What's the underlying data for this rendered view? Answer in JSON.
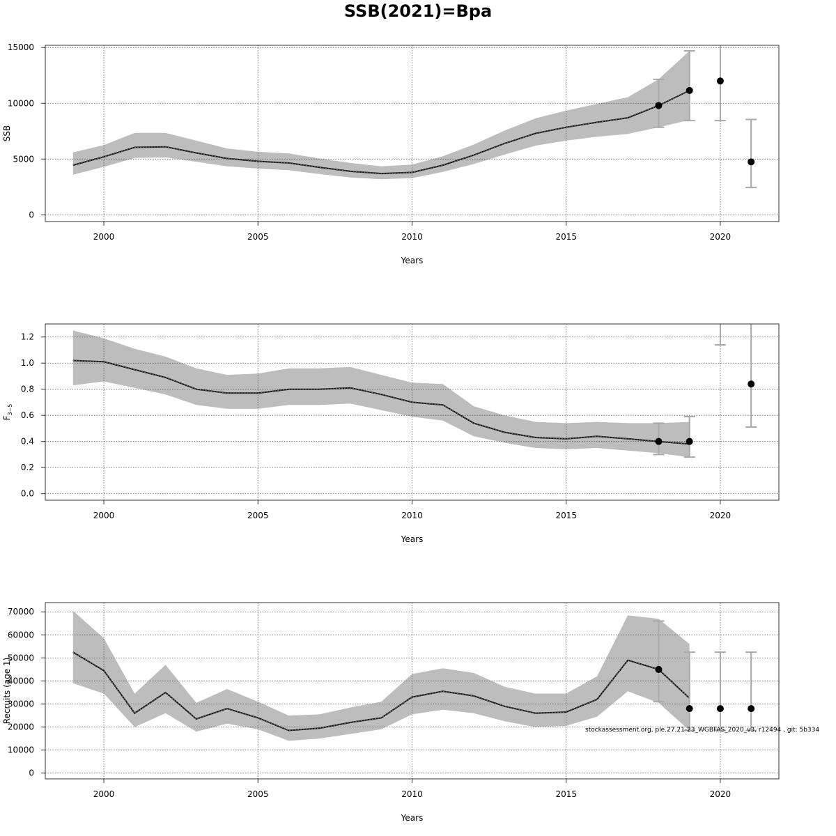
{
  "chart_data": {
    "title": "SSB(2021)=Bpa",
    "footnote": "stockassessment.org, ple.27.21-23_WGBFAS_2020_v3, r12494 , git: 5b334",
    "panels": [
      {
        "type": "line",
        "ylabel": "SSB",
        "xlabel": "Years",
        "xlim": [
          1998.1,
          2021.9
        ],
        "ylim": [
          -600,
          15200
        ],
        "xticks": [
          "2000",
          "2005",
          "2010",
          "2015",
          "2020"
        ],
        "yticks": [
          "0",
          "5000",
          "10000",
          "15000"
        ],
        "grid": true,
        "series": [
          {
            "x": [
              1999,
              2000,
              2001,
              2002,
              2003,
              2004,
              2005,
              2006,
              2007,
              2008,
              2009,
              2010,
              2011,
              2012,
              2013,
              2014,
              2015,
              2016,
              2017,
              2018,
              2019
            ],
            "estimate": [
              4450,
              5200,
              6050,
              6100,
              5550,
              5050,
              4800,
              4650,
              4250,
              3900,
              3700,
              3800,
              4450,
              5350,
              6400,
              7300,
              7850,
              8300,
              8700,
              9800,
              11150
            ],
            "lower": [
              3600,
              4300,
              5100,
              5150,
              4750,
              4350,
              4150,
              4000,
              3650,
              3350,
              3200,
              3300,
              3850,
              4550,
              5400,
              6200,
              6650,
              7000,
              7250,
              7850,
              8500
            ],
            "upper": [
              5600,
              6250,
              7350,
              7350,
              6650,
              5950,
              5650,
              5500,
              5050,
              4650,
              4350,
              4500,
              5250,
              6300,
              7550,
              8650,
              9350,
              9950,
              10550,
              12150,
              14700
            ]
          }
        ],
        "points": [
          {
            "x": 2018,
            "y": 9800,
            "lo": 7850,
            "hi": 12150
          },
          {
            "x": 2019,
            "y": 11150,
            "lo": 8450,
            "hi": 14700
          },
          {
            "x": 2020,
            "y": 12000,
            "lo": 8450,
            "hi": 15500
          },
          {
            "x": 2021,
            "y": 4750,
            "lo": 2450,
            "hi": 8550
          }
        ]
      },
      {
        "type": "line",
        "ylabel": "F3-5",
        "ylabel_main": "F",
        "ylabel_sub": "3−5",
        "xlabel": "Years",
        "xlim": [
          1998.1,
          2021.9
        ],
        "ylim": [
          -0.05,
          1.3
        ],
        "xticks": [
          "2000",
          "2005",
          "2010",
          "2015",
          "2020"
        ],
        "yticks": [
          "0.0",
          "0.2",
          "0.4",
          "0.6",
          "0.8",
          "1.0",
          "1.2"
        ],
        "grid": true,
        "series": [
          {
            "x": [
              1999,
              2000,
              2001,
              2002,
              2003,
              2004,
              2005,
              2006,
              2007,
              2008,
              2009,
              2010,
              2011,
              2012,
              2013,
              2014,
              2015,
              2016,
              2017,
              2018,
              2019
            ],
            "estimate": [
              1.02,
              1.01,
              0.95,
              0.89,
              0.8,
              0.77,
              0.77,
              0.8,
              0.8,
              0.81,
              0.76,
              0.7,
              0.68,
              0.54,
              0.47,
              0.43,
              0.42,
              0.44,
              0.42,
              0.4,
              0.38
            ],
            "lower": [
              0.83,
              0.86,
              0.81,
              0.76,
              0.68,
              0.65,
              0.65,
              0.68,
              0.68,
              0.69,
              0.64,
              0.59,
              0.56,
              0.44,
              0.39,
              0.35,
              0.34,
              0.35,
              0.33,
              0.31,
              0.28
            ],
            "upper": [
              1.25,
              1.19,
              1.11,
              1.05,
              0.96,
              0.91,
              0.92,
              0.96,
              0.96,
              0.97,
              0.91,
              0.85,
              0.84,
              0.67,
              0.6,
              0.55,
              0.54,
              0.55,
              0.54,
              0.54,
              0.55
            ]
          }
        ],
        "points": [
          {
            "x": 2018,
            "y": 0.4,
            "lo": 0.3,
            "hi": 0.54
          },
          {
            "x": 2019,
            "y": 0.4,
            "lo": 0.28,
            "hi": 0.59
          },
          {
            "x": 2020,
            "y": 1.35,
            "lo": 1.14,
            "hi": 1.4
          },
          {
            "x": 2021,
            "y": 0.84,
            "lo": 0.51,
            "hi": 1.4
          }
        ]
      },
      {
        "type": "line",
        "ylabel": "Recruits (age 1)",
        "xlabel": "Years",
        "xlim": [
          1998.1,
          2021.9
        ],
        "ylim": [
          -2500,
          74000
        ],
        "xticks": [
          "2000",
          "2005",
          "2010",
          "2015",
          "2020"
        ],
        "yticks": [
          "0",
          "10000",
          "20000",
          "30000",
          "40000",
          "50000",
          "60000",
          "70000"
        ],
        "grid": true,
        "series": [
          {
            "x": [
              1999,
              2000,
              2001,
              2002,
              2003,
              2004,
              2005,
              2006,
              2007,
              2008,
              2009,
              2010,
              2011,
              2012,
              2013,
              2014,
              2015,
              2016,
              2017,
              2018,
              2019
            ],
            "estimate": [
              52500,
              44500,
              26000,
              35000,
              23500,
              28000,
              24000,
              18500,
              19500,
              22000,
              24000,
              33000,
              35500,
              33500,
              29000,
              26000,
              26500,
              32000,
              49000,
              45000,
              32500
            ],
            "lower": [
              39000,
              34500,
              20000,
              26000,
              18000,
              21500,
              19000,
              14000,
              15000,
              17000,
              19000,
              25500,
              27500,
              26000,
              22500,
              20000,
              20500,
              24500,
              35500,
              30500,
              18500
            ],
            "upper": [
              70500,
              58500,
              34500,
              47000,
              30500,
              36500,
              31000,
              25000,
              25500,
              28500,
              31000,
              43000,
              45500,
              43500,
              37500,
              34500,
              34500,
              42000,
              68500,
              67000,
              56000
            ]
          }
        ],
        "points": [
          {
            "x": 2018,
            "y": 45000,
            "lo": 31000,
            "hi": 66000
          },
          {
            "x": 2019,
            "y": 28000,
            "lo": 18500,
            "hi": 52500
          },
          {
            "x": 2020,
            "y": 28000,
            "lo": 18500,
            "hi": 52500
          },
          {
            "x": 2021,
            "y": 28000,
            "lo": 18500,
            "hi": 52500
          }
        ]
      }
    ]
  }
}
